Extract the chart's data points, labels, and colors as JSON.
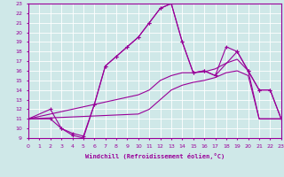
{
  "xlabel": "Windchill (Refroidissement éolien,°C)",
  "xlim": [
    0,
    23
  ],
  "ylim": [
    9,
    23
  ],
  "xticks": [
    0,
    1,
    2,
    3,
    4,
    5,
    6,
    7,
    8,
    9,
    10,
    11,
    12,
    13,
    14,
    15,
    16,
    17,
    18,
    19,
    20,
    21,
    22,
    23
  ],
  "yticks": [
    9,
    10,
    11,
    12,
    13,
    14,
    15,
    16,
    17,
    18,
    19,
    20,
    21,
    22,
    23
  ],
  "bg_color": "#cfe8e8",
  "grid_color": "#ffffff",
  "line_color": "#990099",
  "line1_x": [
    0,
    2,
    3,
    4,
    5,
    6,
    7,
    8,
    9,
    10,
    11,
    12,
    13,
    14,
    15,
    16,
    17,
    19,
    20,
    21,
    22,
    23
  ],
  "line1_y": [
    11,
    12,
    10,
    9.5,
    9.2,
    12.5,
    16.5,
    17.5,
    18.5,
    19.5,
    21,
    22.5,
    23,
    19,
    15.8,
    16,
    15.5,
    18,
    16,
    14,
    14,
    11
  ],
  "line2_x": [
    0,
    2,
    3,
    4,
    5,
    6,
    7,
    8,
    9,
    10,
    11,
    12,
    13,
    14,
    15,
    16,
    17,
    18,
    19,
    20,
    21,
    22,
    23
  ],
  "line2_y": [
    11,
    11,
    10,
    9.3,
    9.0,
    12.5,
    16.5,
    17.5,
    18.5,
    19.5,
    21,
    22.5,
    23,
    19,
    15.8,
    16,
    15.5,
    18.5,
    18,
    16,
    14,
    14,
    11
  ],
  "line3_x": [
    0,
    10,
    11,
    12,
    13,
    14,
    15,
    16,
    17,
    18,
    19,
    20,
    21,
    22,
    23
  ],
  "line3_y": [
    11,
    13.5,
    14,
    15,
    15.5,
    15.8,
    15.8,
    15.9,
    16.2,
    16.8,
    17.2,
    16.0,
    11,
    11,
    11
  ],
  "line4_x": [
    0,
    10,
    11,
    12,
    13,
    14,
    15,
    16,
    17,
    18,
    19,
    20,
    21,
    22,
    23
  ],
  "line4_y": [
    11,
    11.5,
    12,
    13,
    14,
    14.5,
    14.8,
    15.0,
    15.3,
    15.8,
    16.0,
    15.5,
    11,
    11,
    11
  ]
}
